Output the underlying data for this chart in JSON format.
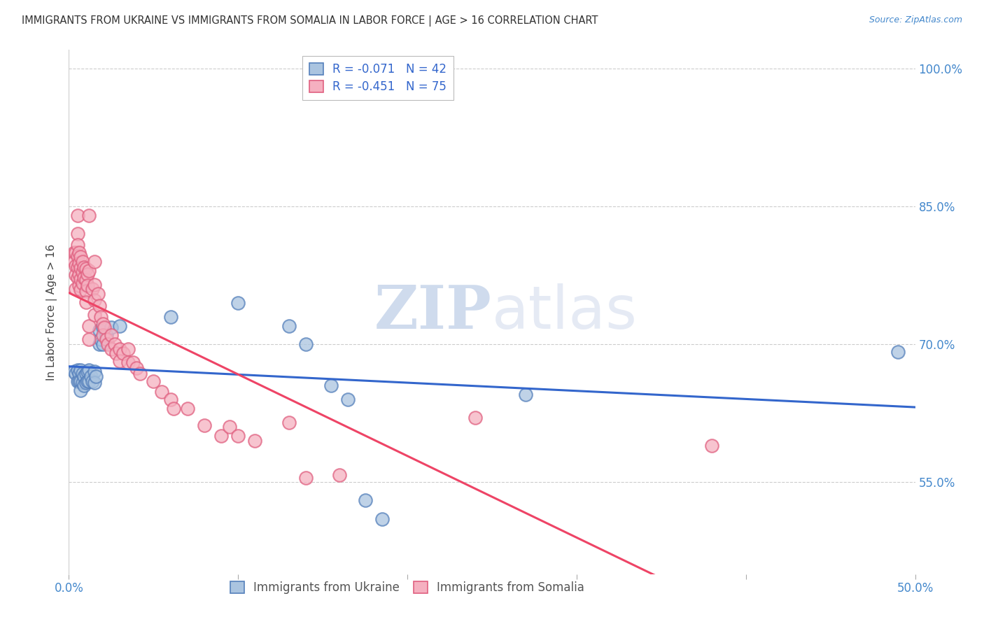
{
  "title": "IMMIGRANTS FROM UKRAINE VS IMMIGRANTS FROM SOMALIA IN LABOR FORCE | AGE > 16 CORRELATION CHART",
  "source": "Source: ZipAtlas.com",
  "ylabel": "In Labor Force | Age > 16",
  "xlim": [
    0.0,
    0.5
  ],
  "ylim": [
    0.45,
    1.02
  ],
  "yticks": [
    0.55,
    0.7,
    0.85,
    1.0
  ],
  "ytick_labels": [
    "55.0%",
    "70.0%",
    "85.0%",
    "100.0%"
  ],
  "xticks": [
    0.0,
    0.1,
    0.2,
    0.3,
    0.4,
    0.5
  ],
  "xtick_labels": [
    "0.0%",
    "",
    "",
    "",
    "",
    "50.0%"
  ],
  "ukraine_R": -0.071,
  "ukraine_N": 42,
  "somalia_R": -0.451,
  "somalia_N": 75,
  "ukraine_color": "#aac4e0",
  "somalia_color": "#f5b0c0",
  "ukraine_edge_color": "#5580bb",
  "somalia_edge_color": "#e06080",
  "line_ukraine_color": "#3366cc",
  "line_somalia_color": "#ee4466",
  "watermark_zip": "ZIP",
  "watermark_atlas": "atlas",
  "ukraine_points": [
    [
      0.003,
      0.67
    ],
    [
      0.004,
      0.668
    ],
    [
      0.005,
      0.672
    ],
    [
      0.005,
      0.66
    ],
    [
      0.006,
      0.668
    ],
    [
      0.006,
      0.66
    ],
    [
      0.007,
      0.672
    ],
    [
      0.007,
      0.66
    ],
    [
      0.007,
      0.65
    ],
    [
      0.008,
      0.668
    ],
    [
      0.008,
      0.658
    ],
    [
      0.009,
      0.665
    ],
    [
      0.009,
      0.655
    ],
    [
      0.01,
      0.668
    ],
    [
      0.01,
      0.658
    ],
    [
      0.011,
      0.67
    ],
    [
      0.011,
      0.66
    ],
    [
      0.012,
      0.672
    ],
    [
      0.012,
      0.66
    ],
    [
      0.013,
      0.665
    ],
    [
      0.014,
      0.66
    ],
    [
      0.015,
      0.67
    ],
    [
      0.015,
      0.658
    ],
    [
      0.016,
      0.665
    ],
    [
      0.018,
      0.715
    ],
    [
      0.018,
      0.7
    ],
    [
      0.019,
      0.705
    ],
    [
      0.02,
      0.718
    ],
    [
      0.02,
      0.7
    ],
    [
      0.022,
      0.71
    ],
    [
      0.025,
      0.718
    ],
    [
      0.03,
      0.72
    ],
    [
      0.06,
      0.73
    ],
    [
      0.1,
      0.745
    ],
    [
      0.13,
      0.72
    ],
    [
      0.14,
      0.7
    ],
    [
      0.155,
      0.655
    ],
    [
      0.165,
      0.64
    ],
    [
      0.175,
      0.53
    ],
    [
      0.185,
      0.51
    ],
    [
      0.27,
      0.645
    ],
    [
      0.49,
      0.692
    ]
  ],
  "somalia_points": [
    [
      0.003,
      0.8
    ],
    [
      0.003,
      0.79
    ],
    [
      0.004,
      0.8
    ],
    [
      0.004,
      0.785
    ],
    [
      0.004,
      0.775
    ],
    [
      0.004,
      0.76
    ],
    [
      0.005,
      0.84
    ],
    [
      0.005,
      0.82
    ],
    [
      0.005,
      0.808
    ],
    [
      0.005,
      0.796
    ],
    [
      0.005,
      0.784
    ],
    [
      0.005,
      0.772
    ],
    [
      0.006,
      0.8
    ],
    [
      0.006,
      0.788
    ],
    [
      0.006,
      0.776
    ],
    [
      0.006,
      0.764
    ],
    [
      0.007,
      0.795
    ],
    [
      0.007,
      0.783
    ],
    [
      0.007,
      0.771
    ],
    [
      0.007,
      0.759
    ],
    [
      0.008,
      0.79
    ],
    [
      0.008,
      0.778
    ],
    [
      0.008,
      0.766
    ],
    [
      0.009,
      0.784
    ],
    [
      0.009,
      0.772
    ],
    [
      0.01,
      0.782
    ],
    [
      0.01,
      0.77
    ],
    [
      0.01,
      0.758
    ],
    [
      0.01,
      0.746
    ],
    [
      0.011,
      0.776
    ],
    [
      0.011,
      0.764
    ],
    [
      0.012,
      0.84
    ],
    [
      0.012,
      0.78
    ],
    [
      0.012,
      0.72
    ],
    [
      0.012,
      0.705
    ],
    [
      0.014,
      0.76
    ],
    [
      0.015,
      0.79
    ],
    [
      0.015,
      0.765
    ],
    [
      0.015,
      0.748
    ],
    [
      0.015,
      0.732
    ],
    [
      0.017,
      0.755
    ],
    [
      0.018,
      0.742
    ],
    [
      0.019,
      0.73
    ],
    [
      0.02,
      0.722
    ],
    [
      0.02,
      0.71
    ],
    [
      0.021,
      0.718
    ],
    [
      0.022,
      0.705
    ],
    [
      0.023,
      0.7
    ],
    [
      0.025,
      0.71
    ],
    [
      0.025,
      0.695
    ],
    [
      0.027,
      0.7
    ],
    [
      0.028,
      0.69
    ],
    [
      0.03,
      0.695
    ],
    [
      0.03,
      0.682
    ],
    [
      0.032,
      0.69
    ],
    [
      0.035,
      0.695
    ],
    [
      0.035,
      0.68
    ],
    [
      0.038,
      0.68
    ],
    [
      0.04,
      0.674
    ],
    [
      0.042,
      0.668
    ],
    [
      0.05,
      0.66
    ],
    [
      0.055,
      0.648
    ],
    [
      0.06,
      0.64
    ],
    [
      0.062,
      0.63
    ],
    [
      0.07,
      0.63
    ],
    [
      0.08,
      0.612
    ],
    [
      0.09,
      0.6
    ],
    [
      0.095,
      0.61
    ],
    [
      0.1,
      0.6
    ],
    [
      0.11,
      0.595
    ],
    [
      0.13,
      0.615
    ],
    [
      0.14,
      0.555
    ],
    [
      0.16,
      0.558
    ],
    [
      0.24,
      0.62
    ],
    [
      0.38,
      0.59
    ]
  ]
}
